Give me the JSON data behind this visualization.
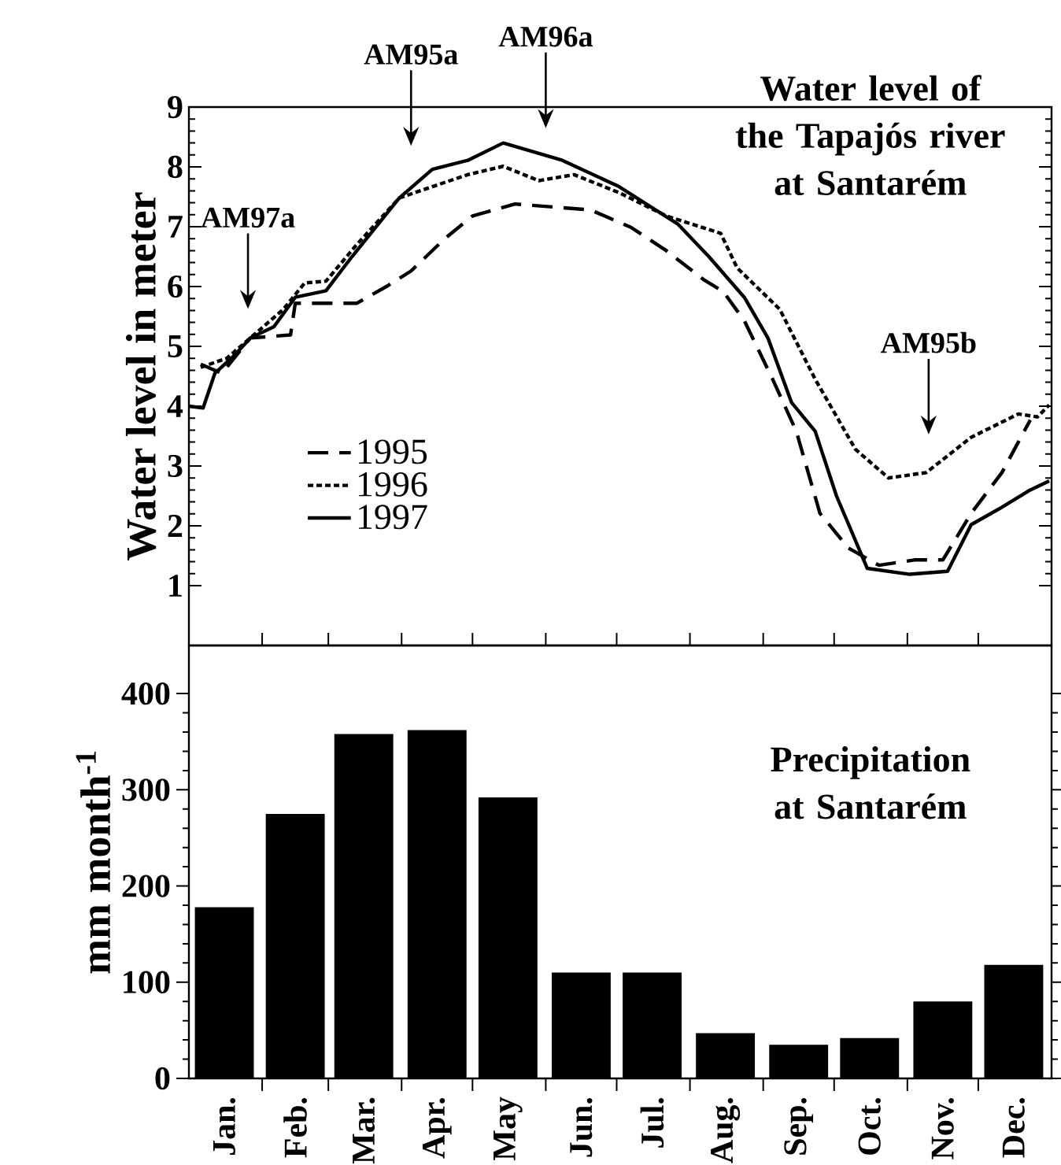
{
  "chart_data": [
    {
      "type": "line",
      "title": "Water level of the Tapajós river at Santarém",
      "ylabel": "Water level in meter",
      "xlim": [
        "--01-01",
        "--12-31"
      ],
      "xticks": [
        {
          "value": "--02-01",
          "label": null
        },
        {
          "value": "--03-01",
          "label": null
        },
        {
          "value": "--04-01",
          "label": null
        },
        {
          "value": "--05-01",
          "label": null
        },
        {
          "value": "--06-01",
          "label": null
        },
        {
          "value": "--07-01",
          "label": null
        },
        {
          "value": "--08-01",
          "label": null
        },
        {
          "value": "--09-01",
          "label": null
        },
        {
          "value": "--10-01",
          "label": null
        },
        {
          "value": "--11-01",
          "label": null
        },
        {
          "value": "--12-01",
          "label": null
        }
      ],
      "ylim": [
        0,
        9
      ],
      "yticks": [
        1,
        2,
        3,
        4,
        5,
        6,
        7,
        8,
        9
      ],
      "tick_labels": "y",
      "legend": "bottom left",
      "annotations": [
        "AM97a",
        "AM95a",
        "AM96a",
        "AM95b"
      ],
      "series": [
        {
          "name": "1995",
          "color": "#000000",
          "line_style": "dashed",
          "x": [
            "--01-06",
            "--01-15",
            "--01-27",
            "--02-13",
            "--02-15",
            "--02-28",
            "--03-13",
            "--03-26",
            "--04-05",
            "--04-19",
            "--05-01",
            "--05-19",
            "--06-20",
            "--07-07",
            "--07-22",
            "--08-07",
            "--08-15",
            "--08-24",
            "--09-05",
            "--09-15",
            "--09-25",
            "--10-07",
            "--10-20",
            "--11-04",
            "--11-16",
            "--11-28",
            "--12-11",
            "--12-23"
          ],
          "values": [
            4.7,
            4.55,
            5.14,
            5.19,
            5.72,
            5.72,
            5.72,
            6.01,
            6.26,
            6.79,
            7.18,
            7.38,
            7.28,
            6.99,
            6.6,
            6.11,
            5.92,
            5.43,
            4.45,
            3.58,
            2.21,
            1.63,
            1.34,
            1.43,
            1.43,
            2.21,
            2.89,
            3.77
          ]
        },
        {
          "name": "1996",
          "color": "#000000",
          "line_style": "dotted",
          "x": [
            "--01-06",
            "--01-17",
            "--01-27",
            "--02-10",
            "--02-19",
            "--02-28",
            "--03-13",
            "--03-31",
            "--04-14",
            "--04-29",
            "--05-14",
            "--05-29",
            "--06-13",
            "--07-02",
            "--07-22",
            "--08-14",
            "--08-21",
            "--09-08",
            "--09-23",
            "--10-10",
            "--10-24",
            "--11-09",
            "--11-28",
            "--12-18",
            "--12-26",
            "--12-31"
          ],
          "values": [
            4.65,
            4.8,
            5.14,
            5.62,
            6.06,
            6.09,
            6.7,
            7.48,
            7.67,
            7.87,
            8.01,
            7.77,
            7.87,
            7.57,
            7.18,
            6.89,
            6.31,
            5.62,
            4.45,
            3.28,
            2.8,
            2.89,
            3.48,
            3.87,
            3.82,
            4.02
          ]
        },
        {
          "name": "1997",
          "color": "#000000",
          "line_style": "solid",
          "x": [
            "--01-01",
            "--01-07",
            "--01-12",
            "--01-20",
            "--01-27",
            "--02-06",
            "--02-15",
            "--02-28",
            "--03-11",
            "--03-21",
            "--03-31",
            "--04-14",
            "--04-29",
            "--05-14",
            "--06-08",
            "--07-02",
            "--07-27",
            "--08-09",
            "--08-24",
            "--09-03",
            "--09-13",
            "--09-23",
            "--10-02",
            "--10-15",
            "--11-02",
            "--11-18",
            "--11-28",
            "--12-11",
            "--12-23",
            "--12-31"
          ],
          "values": [
            4.0,
            3.97,
            4.55,
            4.84,
            5.14,
            5.33,
            5.82,
            5.93,
            6.5,
            6.99,
            7.48,
            7.96,
            8.11,
            8.4,
            8.11,
            7.67,
            7.04,
            6.5,
            5.82,
            5.14,
            4.06,
            3.58,
            2.5,
            1.29,
            1.19,
            1.24,
            2.02,
            2.31,
            2.6,
            2.75
          ]
        }
      ]
    },
    {
      "type": "bar",
      "title": "Precipitation at Santarém",
      "ylabel": "mm month$^{-1}$",
      "x": [
        "--01-16",
        "--02-15",
        "--03-16",
        "--04-16",
        "--05-16",
        "--06-16",
        "--07-16",
        "--08-16",
        "--09-16",
        "--10-16",
        "--11-16",
        "--12-16"
      ],
      "xlim": [
        "--01-01",
        "--12-31"
      ],
      "xticks": [
        {
          "value": "--01-16",
          "label": "Jan."
        },
        {
          "value": "--02-15",
          "label": "Feb."
        },
        {
          "value": "--03-16",
          "label": "Mar."
        },
        {
          "value": "--04-16",
          "label": "Apr."
        },
        {
          "value": "--05-16",
          "label": "May"
        },
        {
          "value": "--06-16",
          "label": "Jun."
        },
        {
          "value": "--07-16",
          "label": "Jul."
        },
        {
          "value": "--08-16",
          "label": "Aug."
        },
        {
          "value": "--09-16",
          "label": "Sep."
        },
        {
          "value": "--10-16",
          "label": "Oct."
        },
        {
          "value": "--11-16",
          "label": "Nov."
        },
        {
          "value": "--12-16",
          "label": "Dec."
        },
        {
          "value": "--02-01",
          "label": null
        },
        {
          "value": "--03-01",
          "label": null
        },
        {
          "value": "--04-01",
          "label": null
        },
        {
          "value": "--05-01",
          "label": null
        },
        {
          "value": "--06-01",
          "label": null
        },
        {
          "value": "--07-01",
          "label": null
        },
        {
          "value": "--08-01",
          "label": null
        },
        {
          "value": "--09-01",
          "label": null
        },
        {
          "value": "--10-01",
          "label": null
        },
        {
          "value": "--11-01",
          "label": null
        },
        {
          "value": "--12-01",
          "label": null
        }
      ],
      "values": [
        178,
        275,
        358,
        362,
        292,
        110,
        110,
        47,
        35,
        42,
        80,
        118
      ],
      "color": "#000000",
      "ylim": [
        0,
        450
      ],
      "yticks": [
        0,
        100,
        200,
        300,
        400
      ]
    }
  ]
}
